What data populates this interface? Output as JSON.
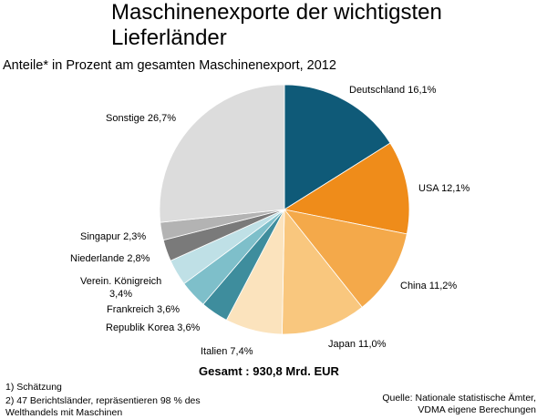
{
  "title": "Maschinenexporte der wichtigsten Lieferländer",
  "subtitle": "Anteile* in Prozent am gesamten Maschinenexport, 2012",
  "total": "Gesamt : 930,8 Mrd. EUR",
  "footnotes": [
    "1) Schätzung",
    "2) 47 Berichtsländer, repräsentieren 98 % des Welthandels mit Maschinen"
  ],
  "source": "Quelle: Nationale statistische Ämter, VDMA eigene Berechungen",
  "chart_data": {
    "type": "pie",
    "unit": "%",
    "slices": [
      {
        "label": "Deutschland",
        "value": 16.1,
        "display": "16,1%",
        "color": "#0f5a78"
      },
      {
        "label": "USA",
        "value": 12.1,
        "display": "12,1%",
        "color": "#ef8c1a"
      },
      {
        "label": "China",
        "value": 11.2,
        "display": "11,2%",
        "color": "#f4a94a"
      },
      {
        "label": "Japan",
        "value": 11.0,
        "display": "11,0%",
        "color": "#f9c77e"
      },
      {
        "label": "Italien",
        "value": 7.4,
        "display": "7,4%",
        "color": "#fbe3bd"
      },
      {
        "label": "Republik Korea",
        "value": 3.6,
        "display": "3,6%",
        "color": "#3e8d9d"
      },
      {
        "label": "Frankreich",
        "value": 3.6,
        "display": "3,6%",
        "color": "#7ebfca"
      },
      {
        "label": "Verein. Königreich",
        "value": 3.4,
        "display": "3,4%",
        "color": "#bfe0e6"
      },
      {
        "label": "Niederlande",
        "value": 2.8,
        "display": "2,8%",
        "color": "#7a7a7a"
      },
      {
        "label": "Singapur",
        "value": 2.3,
        "display": "2,3%",
        "color": "#b3b3b3"
      },
      {
        "label": "Sonstige",
        "value": 26.7,
        "display": "26,7%",
        "color": "#dcdcdc"
      }
    ]
  }
}
